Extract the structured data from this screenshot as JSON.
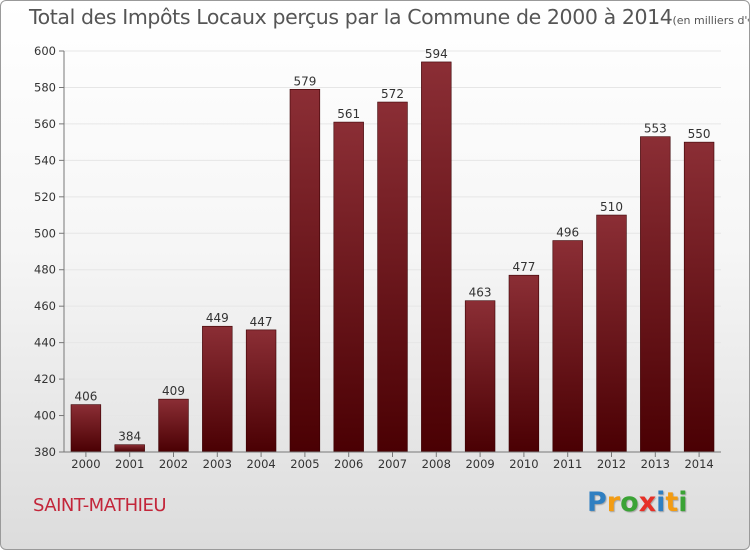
{
  "chart_data": {
    "type": "bar",
    "title": "Total des Impôts Locaux perçus par la Commune de 2000 à 2014",
    "unit_note": "(en milliers d'€)",
    "categories": [
      "2000",
      "2001",
      "2002",
      "2003",
      "2004",
      "2005",
      "2006",
      "2007",
      "2008",
      "2009",
      "2010",
      "2011",
      "2012",
      "2013",
      "2014"
    ],
    "values": [
      406,
      384,
      409,
      449,
      447,
      579,
      561,
      572,
      594,
      463,
      477,
      496,
      510,
      553,
      550
    ],
    "ylim": [
      380,
      600
    ],
    "yticks": [
      380,
      400,
      420,
      440,
      460,
      480,
      500,
      520,
      540,
      560,
      580,
      600
    ],
    "xlabel": "",
    "ylabel": "",
    "grid": true,
    "colors": {
      "bar_top": "#8b2e35",
      "bar_bottom": "#4a0003",
      "axis": "#777777",
      "grid": "#e6e6e6",
      "label": "#333333"
    }
  },
  "commune_name": "SAINT-MATHIEU",
  "brand": {
    "letters": [
      "P",
      "r",
      "o",
      "x",
      "i",
      "t",
      "i"
    ],
    "colors": [
      "#2f7fc1",
      "#f39c12",
      "#3aa335",
      "#e63027",
      "#2f7fc1",
      "#f39c12",
      "#3aa335"
    ]
  }
}
